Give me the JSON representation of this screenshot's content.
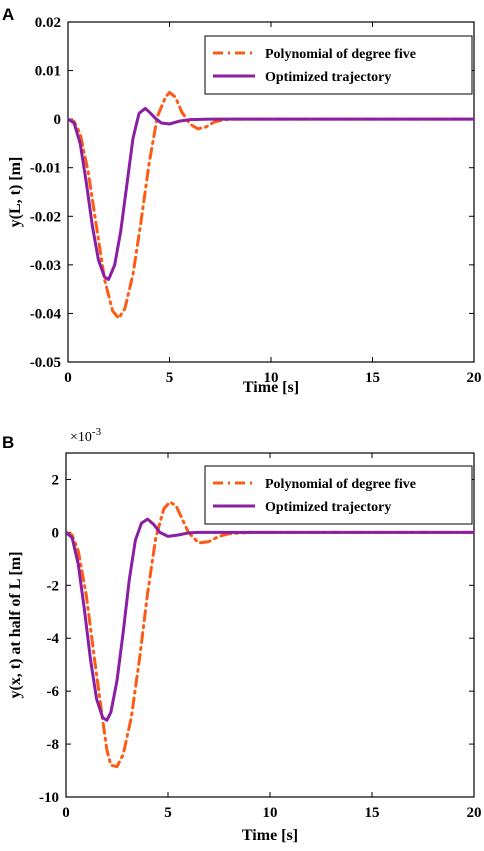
{
  "chart_data": [
    {
      "panel": "A",
      "type": "line",
      "xlabel": "Time [s]",
      "ylabel": "y(L, t) [m]",
      "xlim": [
        0,
        20
      ],
      "ylim": [
        -0.05,
        0.02
      ],
      "xticks": [
        "0",
        "5",
        "10",
        "15",
        "20"
      ],
      "yticks": [
        "0.02",
        "0.01",
        "0",
        "-0.01",
        "-0.02",
        "-0.03",
        "-0.04",
        "-0.05"
      ],
      "legend_position": "top-right",
      "grid": false,
      "series": [
        {
          "name": "Polynomial of degree five",
          "color": "#ff5a14",
          "style": "dash-dot",
          "x": [
            0,
            0.3,
            0.6,
            1.0,
            1.4,
            1.8,
            2.2,
            2.5,
            2.8,
            3.2,
            3.6,
            4.0,
            4.4,
            4.8,
            5.0,
            5.3,
            5.6,
            6.0,
            6.4,
            6.8,
            7.2,
            7.6,
            8.0,
            9.0,
            10,
            12,
            15,
            20
          ],
          "y": [
            0,
            -0.0005,
            -0.003,
            -0.011,
            -0.022,
            -0.033,
            -0.0395,
            -0.041,
            -0.039,
            -0.032,
            -0.021,
            -0.009,
            0.0005,
            0.0045,
            0.0055,
            0.0045,
            0.0015,
            -0.001,
            -0.002,
            -0.0016,
            -0.0006,
            -0.0002,
            0,
            0,
            0,
            0,
            0,
            0
          ]
        },
        {
          "name": "Optimized trajectory",
          "color": "#8a1fa3",
          "style": "solid",
          "x": [
            0,
            0.3,
            0.6,
            0.9,
            1.2,
            1.5,
            1.8,
            2.0,
            2.3,
            2.6,
            2.9,
            3.2,
            3.5,
            3.8,
            4.0,
            4.3,
            4.6,
            5.0,
            5.5,
            6.0,
            7,
            8,
            10,
            15,
            20
          ],
          "y": [
            0,
            -0.0008,
            -0.005,
            -0.013,
            -0.022,
            -0.029,
            -0.0325,
            -0.033,
            -0.03,
            -0.023,
            -0.0135,
            -0.004,
            0.0012,
            0.0022,
            0.0015,
            0.0002,
            -0.0008,
            -0.001,
            -0.0004,
            -0.0001,
            0,
            0,
            0,
            0,
            0
          ]
        }
      ]
    },
    {
      "panel": "B",
      "type": "line",
      "xlabel": "Time [s]",
      "ylabel": "y(x, t) at half of L [m]",
      "y_multiplier": "×10",
      "y_multiplier_exp": "-3",
      "xlim": [
        0,
        20
      ],
      "ylim": [
        -10,
        3
      ],
      "xticks": [
        "0",
        "5",
        "10",
        "15",
        "20"
      ],
      "yticks": [
        "2",
        "0",
        "-2",
        "-4",
        "-6",
        "-8",
        "-10"
      ],
      "legend_position": "top-right",
      "grid": false,
      "series": [
        {
          "name": "Polynomial of degree five",
          "color": "#ff5a14",
          "style": "dash-dot",
          "x": [
            0,
            0.3,
            0.6,
            1.0,
            1.4,
            1.8,
            2.0,
            2.2,
            2.5,
            2.8,
            3.2,
            3.6,
            4.0,
            4.4,
            4.8,
            5.1,
            5.4,
            5.7,
            6.0,
            6.5,
            7.0,
            7.5,
            8.0,
            9.0,
            10,
            12,
            15,
            20
          ],
          "y": [
            0,
            -0.1,
            -0.7,
            -2.4,
            -4.8,
            -7.1,
            -8.2,
            -8.8,
            -8.85,
            -8.4,
            -7.0,
            -4.8,
            -2.3,
            -0.2,
            0.9,
            1.15,
            1.0,
            0.5,
            0.0,
            -0.4,
            -0.35,
            -0.15,
            -0.05,
            0,
            0,
            0,
            0,
            0
          ]
        },
        {
          "name": "Optimized trajectory",
          "color": "#8a1fa3",
          "style": "solid",
          "x": [
            0,
            0.3,
            0.6,
            0.9,
            1.2,
            1.5,
            1.8,
            2.0,
            2.2,
            2.5,
            2.8,
            3.1,
            3.4,
            3.7,
            4.0,
            4.3,
            4.6,
            5.0,
            5.5,
            6.0,
            6.5,
            7.0,
            8.0,
            10,
            15,
            20
          ],
          "y": [
            0,
            -0.2,
            -1.2,
            -2.9,
            -4.8,
            -6.3,
            -7.0,
            -7.1,
            -6.8,
            -5.6,
            -3.8,
            -1.8,
            -0.3,
            0.35,
            0.5,
            0.3,
            0.0,
            -0.15,
            -0.1,
            -0.02,
            0,
            0,
            0,
            0,
            0,
            0
          ]
        }
      ]
    }
  ]
}
